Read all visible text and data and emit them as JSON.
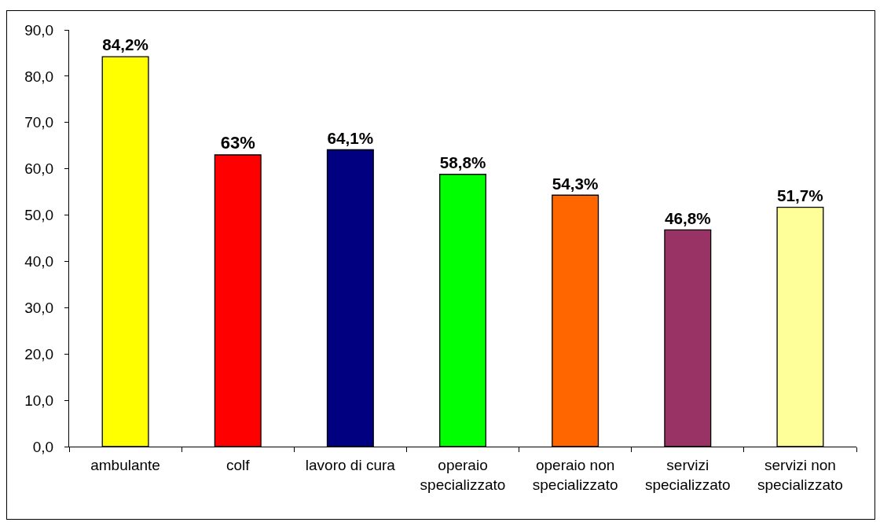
{
  "chart_data": {
    "type": "bar",
    "categories": [
      "ambulante",
      "colf",
      "lavoro di cura",
      "operaio specializzato",
      "operaio non specializzato",
      "servizi specializzato",
      "servizi non specializzato"
    ],
    "values": [
      84.2,
      63,
      64.1,
      58.8,
      54.3,
      46.8,
      51.7
    ],
    "colors": [
      "#ffff00",
      "#ff0000",
      "#000080",
      "#00ff00",
      "#ff6600",
      "#993366",
      "#ffff99"
    ],
    "value_labels": [
      "84,2%",
      "63%",
      "64,1%",
      "58,8%",
      "54,3%",
      "46,8%",
      "51,7%"
    ],
    "ylim": [
      0,
      90
    ],
    "yticks": [
      {
        "value": 0,
        "label": "0,0"
      },
      {
        "value": 10,
        "label": "10,0"
      },
      {
        "value": 20,
        "label": "20,0"
      },
      {
        "value": 30,
        "label": "30,0"
      },
      {
        "value": 40,
        "label": "40,0"
      },
      {
        "value": 50,
        "label": "50,0"
      },
      {
        "value": 60,
        "label": "60,0"
      },
      {
        "value": 70,
        "label": "70,0"
      },
      {
        "value": 80,
        "label": "80,0"
      },
      {
        "value": 90,
        "label": "90,0"
      }
    ],
    "grid": false
  }
}
